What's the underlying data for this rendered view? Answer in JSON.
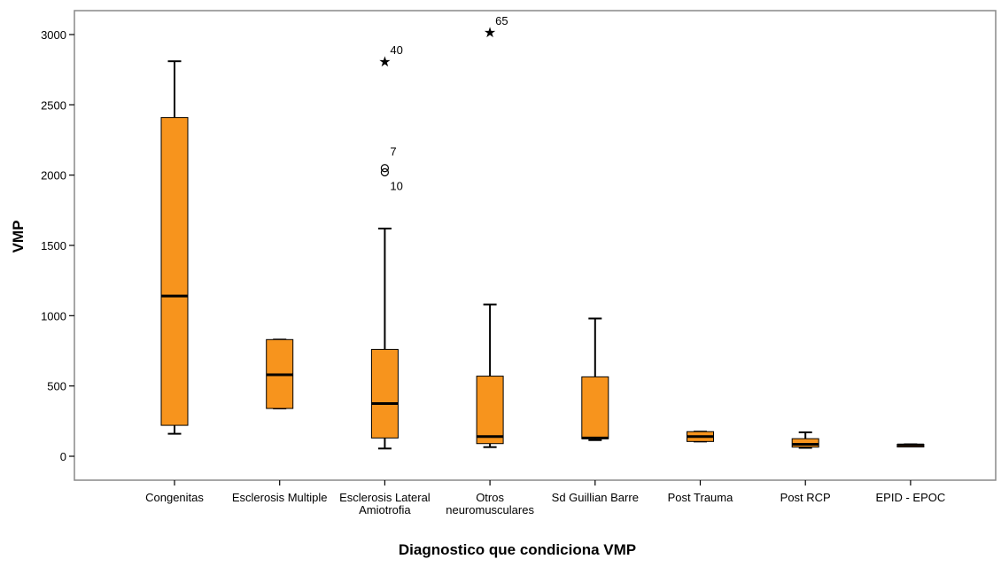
{
  "chart_data": {
    "type": "boxplot",
    "xlabel": "Diagnostico que condiciona VMP",
    "ylabel": "VMP",
    "ylim": [
      -150,
      3170
    ],
    "yticks": [
      0,
      500,
      1000,
      1500,
      2000,
      2500,
      3000
    ],
    "ytick_labels": [
      "0",
      "500",
      "1000",
      "1500",
      "2000",
      "2500",
      "3000"
    ],
    "grid": false,
    "box_color": "#f7941d",
    "categories": [
      {
        "label_lines": [
          "Congenitas"
        ],
        "whisker_low": 160,
        "q1": 220,
        "median": 1140,
        "q3": 2410,
        "whisker_high": 2810,
        "outliers": []
      },
      {
        "label_lines": [
          "Esclerosis Multiple"
        ],
        "whisker_low": 340,
        "q1": 340,
        "median": 580,
        "q3": 830,
        "whisker_high": 830,
        "outliers": []
      },
      {
        "label_lines": [
          "Esclerosis Lateral",
          "Amiotrofia"
        ],
        "whisker_low": 55,
        "q1": 130,
        "median": 375,
        "q3": 760,
        "whisker_high": 1620,
        "outliers": [
          {
            "value": 2810,
            "label": "40",
            "kind": "extreme"
          },
          {
            "value": 2050,
            "label": "7",
            "kind": "outlier"
          },
          {
            "value": 2020,
            "label": "10",
            "kind": "outlier"
          }
        ]
      },
      {
        "label_lines": [
          "Otros",
          "neuromusculares"
        ],
        "whisker_low": 65,
        "q1": 90,
        "median": 140,
        "q3": 570,
        "whisker_high": 1080,
        "outliers": [
          {
            "value": 3020,
            "label": "65",
            "kind": "extreme"
          }
        ]
      },
      {
        "label_lines": [
          "Sd Guillian Barre"
        ],
        "whisker_low": 115,
        "q1": 125,
        "median": 130,
        "q3": 565,
        "whisker_high": 980,
        "outliers": []
      },
      {
        "label_lines": [
          "Post Trauma"
        ],
        "whisker_low": 105,
        "q1": 105,
        "median": 140,
        "q3": 175,
        "whisker_high": 175,
        "outliers": []
      },
      {
        "label_lines": [
          "Post RCP"
        ],
        "whisker_low": 60,
        "q1": 65,
        "median": 85,
        "q3": 125,
        "whisker_high": 170,
        "outliers": []
      },
      {
        "label_lines": [
          "EPID - EPOC"
        ],
        "whisker_low": 75,
        "q1": 75,
        "median": 80,
        "q3": 85,
        "whisker_high": 85,
        "outliers": []
      }
    ]
  }
}
